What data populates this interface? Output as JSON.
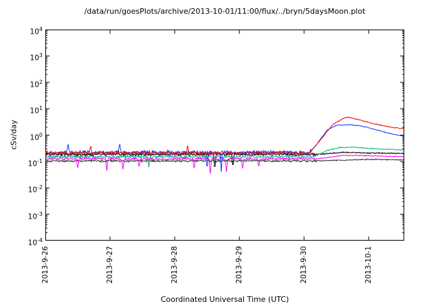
{
  "chart_data": {
    "type": "line",
    "title": "/data/run/goesPlots/archive/2013-10-01/11:00/flux/../bryn/5daysMoon.plot",
    "xlabel": "Coordinated Universal Time (UTC)",
    "ylabel": "cSv/day",
    "y_scale": "log",
    "ylim": [
      0.0001,
      10000
    ],
    "y_tick_base": "10",
    "y_tick_exponents": [
      "4",
      "3",
      "2",
      "1",
      "0",
      "-1",
      "-2",
      "-3",
      "-4"
    ],
    "x_unit": "days since 2013-9-26 00:00 UTC",
    "x_range": [
      0,
      5.55
    ],
    "x_ticks": [
      {
        "day": 0,
        "label": "2013-9-26"
      },
      {
        "day": 1,
        "label": "2013-9-27"
      },
      {
        "day": 2,
        "label": "2013-9-28"
      },
      {
        "day": 3,
        "label": "2013-9-29"
      },
      {
        "day": 4,
        "label": "2013-9-30"
      },
      {
        "day": 5,
        "label": "2013-10-1"
      }
    ],
    "grid": false,
    "legend": "none",
    "event_note": "flux rise begins ~2013-9-30 03:00 UTC; red peaks ~4.8 cSv/day",
    "series": [
      {
        "name": "black",
        "color": "#000000",
        "seed": 4,
        "noise": {
          "amp": 0.15,
          "after_x": 4.2,
          "amp_after": 0.06
        },
        "anchors": [
          [
            0,
            0.185
          ],
          [
            4.2,
            0.185
          ],
          [
            4.6,
            0.22
          ],
          [
            5.0,
            0.21
          ],
          [
            5.55,
            0.2
          ]
        ],
        "spikes": [
          {
            "x": 2.62,
            "v": 0.05
          },
          {
            "x": 2.9,
            "v": 0.06
          }
        ]
      },
      {
        "name": "dark-gray",
        "color": "#303030",
        "seed": 6,
        "noise": {
          "amp": 0.11,
          "after_x": 4.2,
          "amp_after": 0.05
        },
        "anchors": [
          [
            0,
            0.105
          ],
          [
            4.2,
            0.105
          ],
          [
            5.0,
            0.12
          ],
          [
            5.55,
            0.115
          ]
        ],
        "spikes": []
      },
      {
        "name": "teal",
        "color": "#00b386",
        "seed": 3,
        "noise": {
          "amp": 0.13,
          "after_x": 4.15,
          "amp_after": 0.05
        },
        "anchors": [
          [
            0,
            0.15
          ],
          [
            4.15,
            0.15
          ],
          [
            4.35,
            0.26
          ],
          [
            4.55,
            0.34
          ],
          [
            4.75,
            0.35
          ],
          [
            5.0,
            0.31
          ],
          [
            5.3,
            0.29
          ],
          [
            5.55,
            0.27
          ]
        ],
        "spikes": [
          {
            "x": 1.6,
            "v": 0.06
          }
        ]
      },
      {
        "name": "magenta",
        "color": "#ff00ff",
        "seed": 5,
        "noise": {
          "amp": 0.12,
          "after_x": 4.2,
          "amp_after": 0.05
        },
        "anchors": [
          [
            0,
            0.125
          ],
          [
            4.2,
            0.125
          ],
          [
            4.6,
            0.17
          ],
          [
            5.0,
            0.165
          ],
          [
            5.55,
            0.15
          ]
        ],
        "spikes": [
          {
            "x": 0.5,
            "v": 0.05
          },
          {
            "x": 0.95,
            "v": 0.04
          },
          {
            "x": 1.2,
            "v": 0.05
          },
          {
            "x": 1.45,
            "v": 0.06
          },
          {
            "x": 2.3,
            "v": 0.05
          },
          {
            "x": 2.55,
            "v": 0.03
          },
          {
            "x": 2.8,
            "v": 0.04
          },
          {
            "x": 3.05,
            "v": 0.05
          },
          {
            "x": 3.3,
            "v": 0.06
          }
        ]
      },
      {
        "name": "blue",
        "color": "#1a3aff",
        "seed": 2,
        "noise": {
          "amp": 0.2,
          "after_x": 4.12,
          "amp_after": 0.04
        },
        "anchors": [
          [
            0,
            0.22
          ],
          [
            4.08,
            0.22
          ],
          [
            4.2,
            0.45
          ],
          [
            4.35,
            1.5
          ],
          [
            4.5,
            2.35
          ],
          [
            4.7,
            2.45
          ],
          [
            4.85,
            2.3
          ],
          [
            5.0,
            1.9
          ],
          [
            5.15,
            1.5
          ],
          [
            5.3,
            1.2
          ],
          [
            5.45,
            1.0
          ],
          [
            5.55,
            0.9
          ]
        ],
        "spikes": [
          {
            "x": 0.35,
            "v": 0.48
          },
          {
            "x": 1.15,
            "v": 0.5
          },
          {
            "x": 2.5,
            "v": 0.05
          },
          {
            "x": 2.72,
            "v": 0.04
          }
        ]
      },
      {
        "name": "red",
        "color": "#ee0000",
        "seed": 1,
        "noise": {
          "amp": 0.2,
          "after_x": 4.12,
          "amp_after": 0.045
        },
        "anchors": [
          [
            0,
            0.21
          ],
          [
            4.05,
            0.21
          ],
          [
            4.12,
            0.26
          ],
          [
            4.3,
            0.9
          ],
          [
            4.45,
            2.6
          ],
          [
            4.6,
            4.2
          ],
          [
            4.67,
            4.8
          ],
          [
            4.8,
            4.1
          ],
          [
            4.95,
            3.3
          ],
          [
            5.1,
            2.6
          ],
          [
            5.25,
            2.2
          ],
          [
            5.4,
            1.9
          ],
          [
            5.55,
            1.75
          ]
        ],
        "spikes": [
          {
            "x": 0.7,
            "v": 0.42
          },
          {
            "x": 2.2,
            "v": 0.4
          }
        ]
      }
    ]
  }
}
